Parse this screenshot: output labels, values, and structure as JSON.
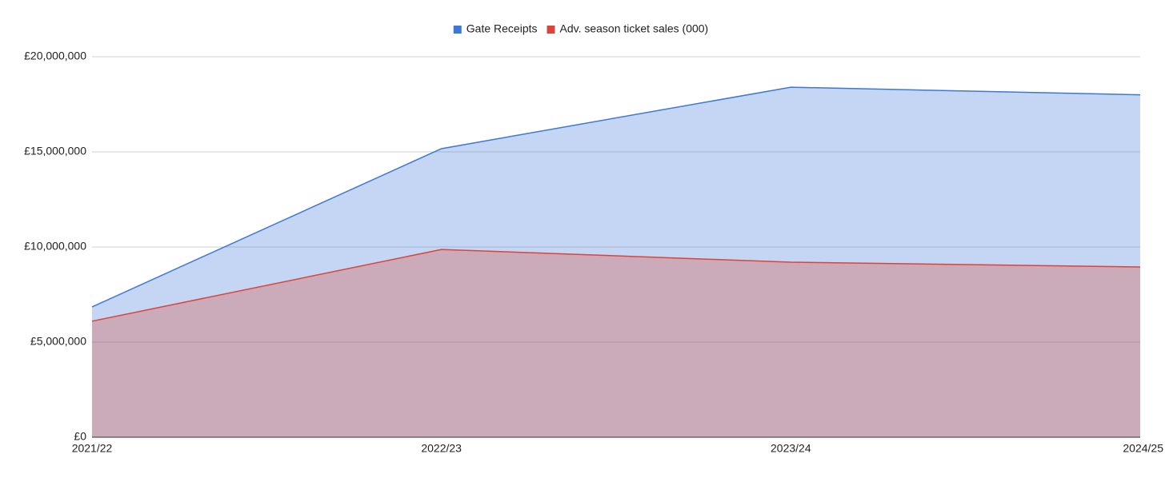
{
  "chart_data": {
    "type": "area",
    "categories": [
      "2021/22",
      "2022/23",
      "2023/24",
      "2024/25"
    ],
    "series": [
      {
        "name": "Gate Receipts",
        "color": "#3c78d8",
        "values": [
          6850000,
          15170000,
          18400000,
          18000000
        ]
      },
      {
        "name": "Adv. season ticket sales (000)",
        "color": "#db4437",
        "values": [
          6100000,
          9870000,
          9200000,
          8950000
        ]
      }
    ],
    "ylim": [
      0,
      20000000
    ],
    "yticks": [
      {
        "value": 0,
        "label": "£0"
      },
      {
        "value": 5000000,
        "label": "£5,000,000"
      },
      {
        "value": 10000000,
        "label": "£10,000,000"
      },
      {
        "value": 15000000,
        "label": "£15,000,000"
      },
      {
        "value": 20000000,
        "label": "£20,000,000"
      }
    ],
    "grid": true,
    "legend": "top"
  }
}
